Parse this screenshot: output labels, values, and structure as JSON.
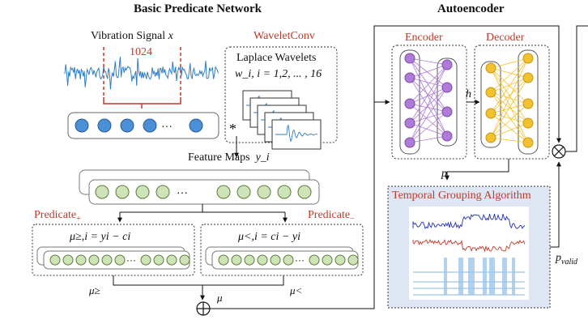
{
  "headers": {
    "left": "Basic Predicate Network",
    "right": "Autoencoder"
  },
  "signal": {
    "label": "Vibration Signal",
    "var": "x",
    "length": "1024"
  },
  "wavelet": {
    "title": "WaveletConv",
    "subtitle": "Laplace Wavelets",
    "formula": "w_i, i = 1,2, ... , 16"
  },
  "conv_symbol": "*",
  "feature_maps": {
    "label": "Feature Maps",
    "var": "y_i"
  },
  "predicates": {
    "plus_label": "Predicate",
    "plus_sub": "+",
    "minus_label": "Predicate",
    "minus_sub": "−",
    "ge_formula": "μ≥,i = yi − ci",
    "lt_formula": "μ<,i = ci − yi",
    "mu_ge": "μ≥",
    "mu_lt": "μ<",
    "mu": "μ"
  },
  "operators": {
    "oplus": "⊕",
    "otimes": "⊗"
  },
  "autoencoder": {
    "encoder": "Encoder",
    "decoder": "Decoder",
    "h": "h",
    "p": "p"
  },
  "tga": {
    "title": "Temporal Grouping Algorithm",
    "p_valid": "p",
    "p_valid_sub": "valid"
  },
  "colors": {
    "red": "#c0392b",
    "signal_blue": "#2e7dc4",
    "node_blue": "#4a90d9",
    "node_green": "#cfe3b8",
    "encoder_purple": "#b07ad8",
    "decoder_yellow": "#f2c12e",
    "tga_bg": "#dde6f2"
  }
}
